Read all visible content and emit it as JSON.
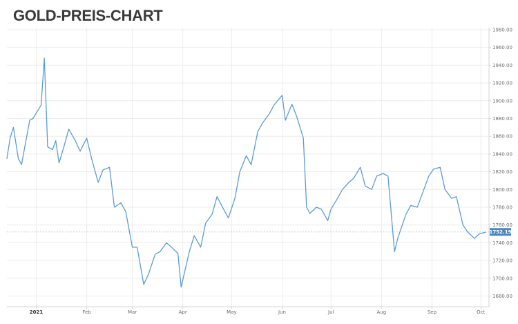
{
  "title": "GOLD-PREIS-CHART",
  "colors": {
    "line": "#5b9bd5",
    "grid": "#ececec",
    "axis": "#d4d4d4",
    "badge": "#4a86c4",
    "reference": "#b9cfe6"
  },
  "chart_data": {
    "type": "line",
    "title": "GOLD-PREIS-CHART",
    "xlabel": "",
    "ylabel": "",
    "ylim": [
      1670,
      1985
    ],
    "y_ticks": [
      "1980.00",
      "1960.00",
      "1940.00",
      "1920.00",
      "1900.00",
      "1880.00",
      "1860.00",
      "1840.00",
      "1820.00",
      "1800.00",
      "1780.00",
      "1760.00",
      "1740.00",
      "1720.00",
      "1700.00",
      "1680.00"
    ],
    "x_ticks": [
      {
        "label": "2021",
        "bold": true
      },
      {
        "label": "Feb"
      },
      {
        "label": "Mar"
      },
      {
        "label": "Apr"
      },
      {
        "label": "May"
      },
      {
        "label": "Jun"
      },
      {
        "label": "Jul"
      },
      {
        "label": "Aug"
      },
      {
        "label": "Sep"
      },
      {
        "label": "Oct"
      }
    ],
    "x_range": [
      "2020-12-14",
      "2021-10-06"
    ],
    "x_tick_dates": [
      "2021-01-01",
      "2021-02-01",
      "2021-03-01",
      "2021-04-01",
      "2021-05-01",
      "2021-06-01",
      "2021-07-01",
      "2021-08-01",
      "2021-09-01",
      "2021-10-01"
    ],
    "last_price_label": "1752.19",
    "grid": true,
    "series": [
      {
        "x": [
          "2020-12-14",
          "2020-12-16",
          "2020-12-18",
          "2020-12-21",
          "2020-12-23",
          "2020-12-28",
          "2020-12-30",
          "2021-01-04",
          "2021-01-06",
          "2021-01-08",
          "2021-01-11",
          "2021-01-13",
          "2021-01-15",
          "2021-01-18",
          "2021-01-21",
          "2021-01-25",
          "2021-01-28",
          "2021-02-01",
          "2021-02-04",
          "2021-02-08",
          "2021-02-11",
          "2021-02-15",
          "2021-02-18",
          "2021-02-22",
          "2021-02-25",
          "2021-03-01",
          "2021-03-04",
          "2021-03-08",
          "2021-03-11",
          "2021-03-15",
          "2021-03-18",
          "2021-03-22",
          "2021-03-25",
          "2021-03-29",
          "2021-03-31",
          "2021-04-05",
          "2021-04-08",
          "2021-04-12",
          "2021-04-15",
          "2021-04-19",
          "2021-04-22",
          "2021-04-26",
          "2021-04-29",
          "2021-05-03",
          "2021-05-06",
          "2021-05-10",
          "2021-05-13",
          "2021-05-17",
          "2021-05-20",
          "2021-05-24",
          "2021-05-27",
          "2021-06-01",
          "2021-06-03",
          "2021-06-07",
          "2021-06-10",
          "2021-06-14",
          "2021-06-16",
          "2021-06-18",
          "2021-06-22",
          "2021-06-25",
          "2021-06-29",
          "2021-07-01",
          "2021-07-05",
          "2021-07-08",
          "2021-07-12",
          "2021-07-15",
          "2021-07-19",
          "2021-07-22",
          "2021-07-26",
          "2021-07-29",
          "2021-08-02",
          "2021-08-05",
          "2021-08-09",
          "2021-08-11",
          "2021-08-16",
          "2021-08-19",
          "2021-08-23",
          "2021-08-26",
          "2021-08-30",
          "2021-09-02",
          "2021-09-06",
          "2021-09-09",
          "2021-09-13",
          "2021-09-16",
          "2021-09-20",
          "2021-09-23",
          "2021-09-27",
          "2021-09-30",
          "2021-10-04"
        ],
        "values": [
          1835,
          1858,
          1870,
          1835,
          1828,
          1878,
          1880,
          1895,
          1948,
          1848,
          1845,
          1855,
          1830,
          1848,
          1868,
          1855,
          1843,
          1858,
          1835,
          1808,
          1822,
          1825,
          1780,
          1785,
          1775,
          1735,
          1735,
          1693,
          1705,
          1727,
          1730,
          1740,
          1735,
          1728,
          1690,
          1730,
          1748,
          1735,
          1762,
          1772,
          1792,
          1778,
          1768,
          1790,
          1820,
          1838,
          1828,
          1865,
          1875,
          1885,
          1895,
          1906,
          1878,
          1896,
          1882,
          1858,
          1780,
          1773,
          1780,
          1778,
          1765,
          1778,
          1790,
          1800,
          1808,
          1813,
          1825,
          1804,
          1800,
          1815,
          1818,
          1815,
          1730,
          1745,
          1772,
          1782,
          1780,
          1795,
          1815,
          1823,
          1825,
          1800,
          1790,
          1792,
          1760,
          1752,
          1745,
          1750,
          1752
        ]
      }
    ]
  }
}
